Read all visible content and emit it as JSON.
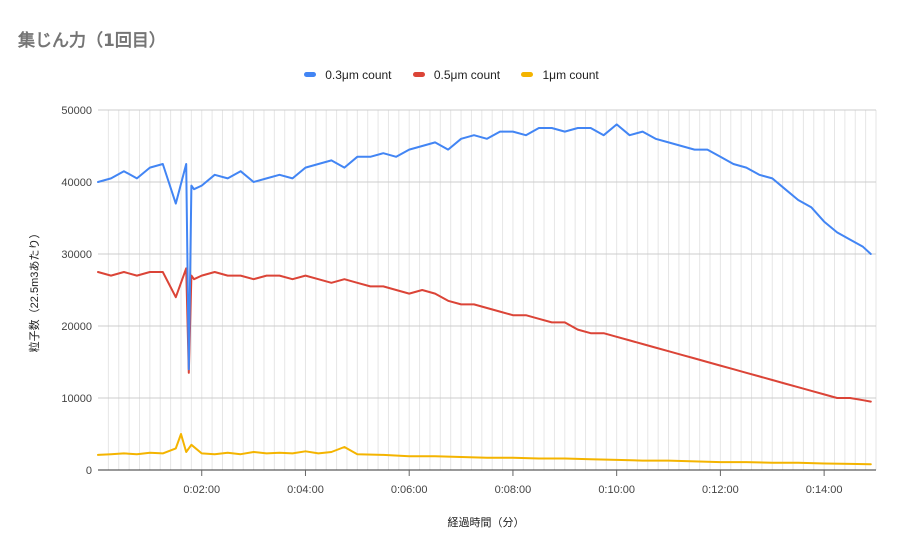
{
  "chart_data": {
    "type": "line",
    "title": "集じん力（1回目）",
    "xlabel": "経過時間（分）",
    "ylabel": "粒子数（22.5m3あたり）",
    "xlim": [
      0,
      15
    ],
    "ylim": [
      0,
      50000
    ],
    "x_ticks": [
      "0:02:00",
      "0:04:00",
      "0:06:00",
      "0:08:00",
      "0:10:00",
      "0:12:00",
      "0:14:00"
    ],
    "y_ticks": [
      "0",
      "10000",
      "20000",
      "30000",
      "40000",
      "50000"
    ],
    "grid": true,
    "legend_position": "top-center",
    "series": [
      {
        "name": "0.3μm count",
        "color": "#4285f4",
        "x": [
          0,
          0.25,
          0.5,
          0.75,
          1,
          1.25,
          1.5,
          1.7,
          1.75,
          1.8,
          1.85,
          2,
          2.25,
          2.5,
          2.75,
          3,
          3.25,
          3.5,
          3.75,
          4,
          4.25,
          4.5,
          4.75,
          5,
          5.25,
          5.5,
          5.75,
          6,
          6.25,
          6.5,
          6.75,
          7,
          7.25,
          7.5,
          7.75,
          8,
          8.25,
          8.5,
          8.75,
          9,
          9.25,
          9.5,
          9.75,
          10,
          10.25,
          10.5,
          10.75,
          11,
          11.25,
          11.5,
          11.75,
          12,
          12.25,
          12.5,
          12.75,
          13,
          13.25,
          13.5,
          13.75,
          14,
          14.25,
          14.5,
          14.75,
          14.9
        ],
        "values": [
          40000,
          40500,
          41500,
          40500,
          42000,
          42500,
          37000,
          42500,
          14000,
          39500,
          39000,
          39500,
          41000,
          40500,
          41500,
          40000,
          40500,
          41000,
          40500,
          42000,
          42500,
          43000,
          42000,
          43500,
          43500,
          44000,
          43500,
          44500,
          45000,
          45500,
          44500,
          46000,
          46500,
          46000,
          47000,
          47000,
          46500,
          47500,
          47500,
          47000,
          47500,
          47500,
          46500,
          48000,
          46500,
          47000,
          46000,
          45500,
          45000,
          44500,
          44500,
          43500,
          42500,
          42000,
          41000,
          40500,
          39000,
          37500,
          36500,
          34500,
          33000,
          32000,
          31000,
          30000
        ],
        "tick_labels": null
      },
      {
        "name": "0.5μm count",
        "color": "#db4437",
        "x": [
          0,
          0.25,
          0.5,
          0.75,
          1,
          1.25,
          1.5,
          1.7,
          1.75,
          1.8,
          1.85,
          2,
          2.25,
          2.5,
          2.75,
          3,
          3.25,
          3.5,
          3.75,
          4,
          4.25,
          4.5,
          4.75,
          5,
          5.25,
          5.5,
          5.75,
          6,
          6.25,
          6.5,
          6.75,
          7,
          7.25,
          7.5,
          7.75,
          8,
          8.25,
          8.5,
          8.75,
          9,
          9.25,
          9.5,
          9.75,
          10,
          10.25,
          10.5,
          10.75,
          11,
          11.25,
          11.5,
          11.75,
          12,
          12.25,
          12.5,
          12.75,
          13,
          13.25,
          13.5,
          13.75,
          14,
          14.25,
          14.5,
          14.75,
          14.9
        ],
        "values": [
          27500,
          27000,
          27500,
          27000,
          27500,
          27500,
          24000,
          28000,
          13500,
          27000,
          26500,
          27000,
          27500,
          27000,
          27000,
          26500,
          27000,
          27000,
          26500,
          27000,
          26500,
          26000,
          26500,
          26000,
          25500,
          25500,
          25000,
          24500,
          25000,
          24500,
          23500,
          23000,
          23000,
          22500,
          22000,
          21500,
          21500,
          21000,
          20500,
          20500,
          19500,
          19000,
          19000,
          18500,
          18000,
          17500,
          17000,
          16500,
          16000,
          15500,
          15000,
          14500,
          14000,
          13500,
          13000,
          12500,
          12000,
          11500,
          11000,
          10500,
          10000,
          10000,
          9700,
          9500
        ]
      },
      {
        "name": "1μm count",
        "color": "#f4b400",
        "x": [
          0,
          0.25,
          0.5,
          0.75,
          1,
          1.25,
          1.5,
          1.6,
          1.7,
          1.8,
          2,
          2.25,
          2.5,
          2.75,
          3,
          3.25,
          3.5,
          3.75,
          4,
          4.25,
          4.5,
          4.75,
          5,
          5.5,
          6,
          6.5,
          7,
          7.5,
          8,
          8.5,
          9,
          9.5,
          10,
          10.5,
          11,
          11.5,
          12,
          12.5,
          13,
          13.5,
          14,
          14.5,
          14.9
        ],
        "values": [
          2100,
          2200,
          2300,
          2200,
          2400,
          2300,
          3000,
          5000,
          2500,
          3500,
          2300,
          2200,
          2400,
          2200,
          2500,
          2300,
          2400,
          2300,
          2600,
          2300,
          2500,
          3200,
          2200,
          2100,
          1900,
          1900,
          1800,
          1700,
          1700,
          1600,
          1600,
          1500,
          1400,
          1300,
          1300,
          1200,
          1100,
          1100,
          1000,
          1000,
          900,
          850,
          800
        ]
      }
    ]
  }
}
